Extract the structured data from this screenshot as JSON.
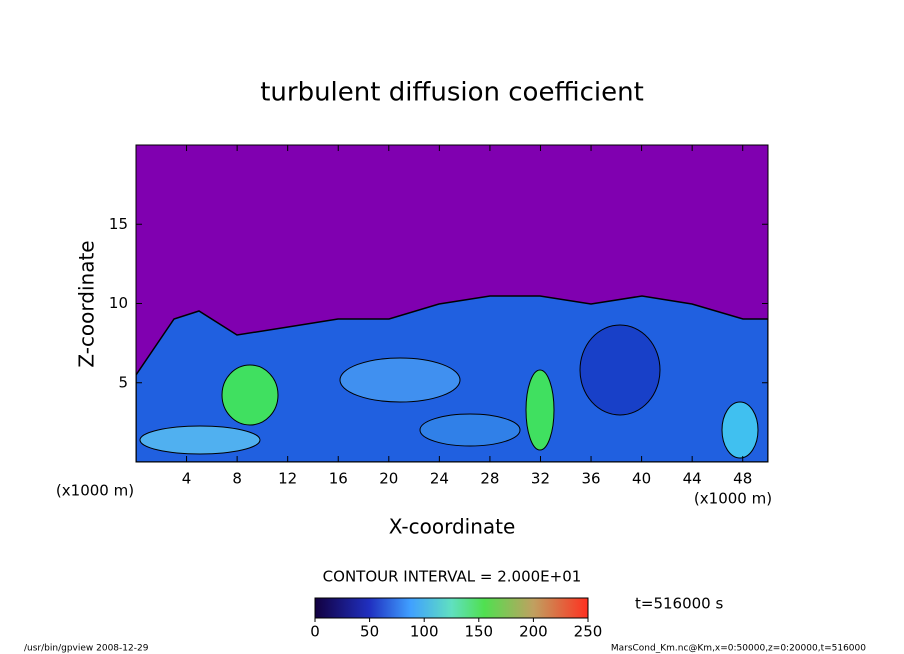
{
  "chart_data": {
    "type": "contour",
    "title": "turbulent diffusion coefficient",
    "x_label": "X-coordinate",
    "y_label": "Z-coordinate",
    "x_unit_label": "(x1000 m)",
    "y_unit_label": "(x1000 m)",
    "xlim": [
      0,
      50
    ],
    "xticks": [
      4,
      8,
      12,
      16,
      20,
      24,
      28,
      32,
      36,
      40,
      44,
      48
    ],
    "ylim": [
      0,
      20
    ],
    "yticks": [
      5,
      10,
      15
    ],
    "contour_interval": "CONTOUR INTERVAL = 2.000E+01",
    "colorbar": {
      "lim": [
        0,
        250
      ],
      "ticks": [
        0,
        50,
        100,
        150,
        200,
        250
      ]
    },
    "time_label": "t=516000 s",
    "footer_left": "/usr/bin/gpview  2008-12-29",
    "footer_right": "MarsCond_Km.nc@Km,x=0:50000,z=0:20000,t=516000"
  }
}
